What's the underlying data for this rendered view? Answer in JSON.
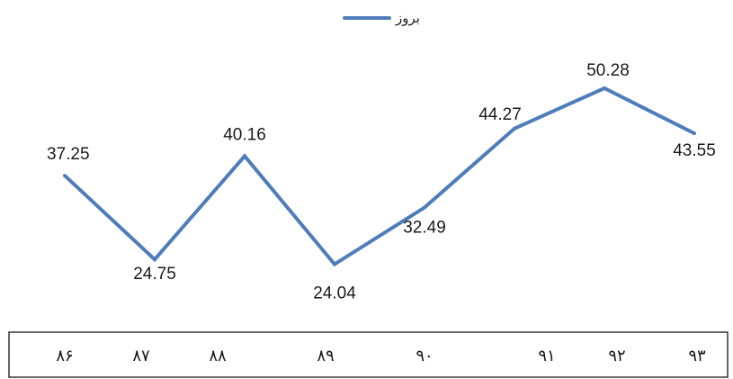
{
  "chart_data": {
    "type": "line",
    "categories": [
      "۸۶",
      "۸۷",
      "۸۸",
      "۸۹",
      "۹۰",
      "۹۱",
      "۹۲",
      "۹۳"
    ],
    "series": [
      {
        "name": "بروز",
        "values": [
          37.25,
          24.75,
          40.16,
          24.04,
          32.49,
          44.27,
          50.28,
          43.55
        ]
      }
    ],
    "data_labels": [
      "37.25",
      "24.75",
      "40.16",
      "24.04",
      "32.49",
      "44.27",
      "50.28",
      "43.55"
    ],
    "legend_position": "top-center",
    "grid": false,
    "colors": {
      "line": "#4f7dbb",
      "axis_box": "#333333",
      "text": "#1a1a1a"
    }
  }
}
